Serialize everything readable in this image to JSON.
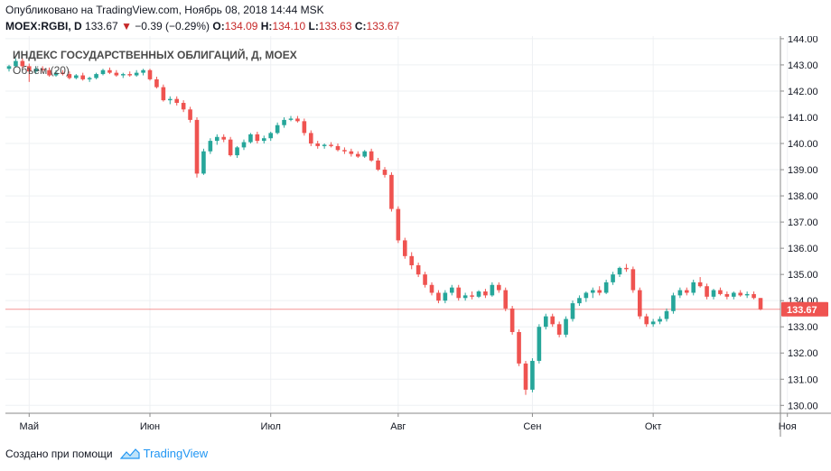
{
  "header": {
    "published": "Опубликовано на TradingView.com, Ноябрь 08, 2018 14:44 MSK",
    "symbol": "MOEX:RGBI, D",
    "last": "133.67",
    "change": "−0.39 (−0.29%)",
    "open_label": "O:",
    "open": "134.09",
    "high_label": "H:",
    "high": "134.10",
    "low_label": "L:",
    "low": "133.63",
    "close_label": "C:",
    "close": "133.67"
  },
  "footer": {
    "text": "Создано при помощи",
    "brand": "TradingView"
  },
  "chart_data": {
    "type": "candlestick",
    "title": "ИНДЕКС ГОСУДАРСТВЕННЫХ ОБЛИГАЦИЙ, Д, MOEX",
    "volume_label": "Объём (20)",
    "ylim": [
      129.7,
      144.1
    ],
    "y_ticks": [
      "130.00",
      "131.00",
      "132.00",
      "133.00",
      "134.00",
      "135.00",
      "136.00",
      "137.00",
      "138.00",
      "139.00",
      "140.00",
      "141.00",
      "142.00",
      "143.00",
      "144.00"
    ],
    "x_ticks": [
      {
        "label": "Май",
        "index": 3
      },
      {
        "label": "Июн",
        "index": 21
      },
      {
        "label": "Июл",
        "index": 39
      },
      {
        "label": "Авг",
        "index": 58
      },
      {
        "label": "Сен",
        "index": 78
      },
      {
        "label": "Окт",
        "index": 96
      },
      {
        "label": "Ноя",
        "index": 116
      }
    ],
    "last_price": 133.67,
    "last_price_label": "133.67",
    "colors": {
      "up": "#26a69a",
      "down": "#ef5350",
      "grid": "#eef0f3",
      "axis": "#8a8a8a",
      "last": "#ef5350"
    },
    "ohlc": [
      [
        142.85,
        143.0,
        142.75,
        142.95
      ],
      [
        142.95,
        143.25,
        142.9,
        143.15
      ],
      [
        143.15,
        143.25,
        142.85,
        142.95
      ],
      [
        142.95,
        143.05,
        142.35,
        142.75
      ],
      [
        142.75,
        142.95,
        142.65,
        142.85
      ],
      [
        142.85,
        142.95,
        142.7,
        142.8
      ],
      [
        142.8,
        142.9,
        142.55,
        142.6
      ],
      [
        142.6,
        142.8,
        142.55,
        142.7
      ],
      [
        142.7,
        142.8,
        142.6,
        142.65
      ],
      [
        142.65,
        142.75,
        142.45,
        142.5
      ],
      [
        142.5,
        142.65,
        142.45,
        142.6
      ],
      [
        142.6,
        142.7,
        142.4,
        142.45
      ],
      [
        142.45,
        142.55,
        142.35,
        142.5
      ],
      [
        142.5,
        142.7,
        142.45,
        142.65
      ],
      [
        142.65,
        142.85,
        142.6,
        142.8
      ],
      [
        142.8,
        142.9,
        142.65,
        142.7
      ],
      [
        142.7,
        142.8,
        142.55,
        142.6
      ],
      [
        142.6,
        142.7,
        142.5,
        142.65
      ],
      [
        142.65,
        142.75,
        142.55,
        142.6
      ],
      [
        142.6,
        142.8,
        142.55,
        142.7
      ],
      [
        142.7,
        142.85,
        142.6,
        142.8
      ],
      [
        142.8,
        142.85,
        142.4,
        142.45
      ],
      [
        142.45,
        142.55,
        142.1,
        142.15
      ],
      [
        142.15,
        142.25,
        141.6,
        141.65
      ],
      [
        141.65,
        141.8,
        141.5,
        141.7
      ],
      [
        141.7,
        141.8,
        141.45,
        141.55
      ],
      [
        141.55,
        141.65,
        141.2,
        141.3
      ],
      [
        141.3,
        141.4,
        140.8,
        140.9
      ],
      [
        140.9,
        141.0,
        138.7,
        138.85
      ],
      [
        138.85,
        139.8,
        138.8,
        139.7
      ],
      [
        139.7,
        140.2,
        139.6,
        140.1
      ],
      [
        140.1,
        140.35,
        139.95,
        140.25
      ],
      [
        140.25,
        140.35,
        140.05,
        140.15
      ],
      [
        140.15,
        140.25,
        139.5,
        139.55
      ],
      [
        139.55,
        139.9,
        139.45,
        139.85
      ],
      [
        139.85,
        140.15,
        139.75,
        140.05
      ],
      [
        140.05,
        140.4,
        140.0,
        140.35
      ],
      [
        140.35,
        140.45,
        140.0,
        140.1
      ],
      [
        140.1,
        140.3,
        140.0,
        140.2
      ],
      [
        140.2,
        140.45,
        140.1,
        140.4
      ],
      [
        140.4,
        140.8,
        140.35,
        140.7
      ],
      [
        140.7,
        141.0,
        140.6,
        140.9
      ],
      [
        140.9,
        141.05,
        140.85,
        140.95
      ],
      [
        140.95,
        141.05,
        140.8,
        140.85
      ],
      [
        140.85,
        140.95,
        140.3,
        140.4
      ],
      [
        140.4,
        140.5,
        139.9,
        140.0
      ],
      [
        140.0,
        140.1,
        139.8,
        139.9
      ],
      [
        139.9,
        140.0,
        139.8,
        139.95
      ],
      [
        139.95,
        140.05,
        139.85,
        139.9
      ],
      [
        139.9,
        140.0,
        139.7,
        139.75
      ],
      [
        139.75,
        139.85,
        139.6,
        139.7
      ],
      [
        139.7,
        139.8,
        139.5,
        139.6
      ],
      [
        139.6,
        139.7,
        139.45,
        139.5
      ],
      [
        139.5,
        139.75,
        139.45,
        139.7
      ],
      [
        139.7,
        139.8,
        139.3,
        139.35
      ],
      [
        139.35,
        139.45,
        138.95,
        139.0
      ],
      [
        139.0,
        139.1,
        138.7,
        138.8
      ],
      [
        138.8,
        138.9,
        137.4,
        137.5
      ],
      [
        137.5,
        137.6,
        136.2,
        136.3
      ],
      [
        136.3,
        136.4,
        135.6,
        135.7
      ],
      [
        135.7,
        135.85,
        135.2,
        135.35
      ],
      [
        135.35,
        135.45,
        134.9,
        135.0
      ],
      [
        135.0,
        135.1,
        134.5,
        134.6
      ],
      [
        134.6,
        134.7,
        134.2,
        134.3
      ],
      [
        134.3,
        134.4,
        133.9,
        134.0
      ],
      [
        134.0,
        134.4,
        133.9,
        134.3
      ],
      [
        134.3,
        134.6,
        134.2,
        134.5
      ],
      [
        134.5,
        134.6,
        134.0,
        134.1
      ],
      [
        134.1,
        134.3,
        134.0,
        134.2
      ],
      [
        134.2,
        134.35,
        134.05,
        134.15
      ],
      [
        134.15,
        134.4,
        134.1,
        134.35
      ],
      [
        134.35,
        134.45,
        134.1,
        134.2
      ],
      [
        134.2,
        134.7,
        134.15,
        134.6
      ],
      [
        134.6,
        134.7,
        134.3,
        134.4
      ],
      [
        134.4,
        134.5,
        133.6,
        133.7
      ],
      [
        133.7,
        133.8,
        132.7,
        132.8
      ],
      [
        132.8,
        132.9,
        131.5,
        131.6
      ],
      [
        131.6,
        131.7,
        130.4,
        130.6
      ],
      [
        130.6,
        131.8,
        130.5,
        131.7
      ],
      [
        131.7,
        133.1,
        131.6,
        133.0
      ],
      [
        133.0,
        133.5,
        132.9,
        133.4
      ],
      [
        133.4,
        133.5,
        133.0,
        133.1
      ],
      [
        133.1,
        133.2,
        132.6,
        132.7
      ],
      [
        132.7,
        133.4,
        132.6,
        133.3
      ],
      [
        133.3,
        134.0,
        133.2,
        133.9
      ],
      [
        133.9,
        134.2,
        133.8,
        134.1
      ],
      [
        134.1,
        134.35,
        133.95,
        134.3
      ],
      [
        134.3,
        134.5,
        134.1,
        134.4
      ],
      [
        134.4,
        134.55,
        134.2,
        134.3
      ],
      [
        134.3,
        134.8,
        134.25,
        134.7
      ],
      [
        134.7,
        135.1,
        134.6,
        135.0
      ],
      [
        135.0,
        135.3,
        134.9,
        135.25
      ],
      [
        135.25,
        135.4,
        135.1,
        135.2
      ],
      [
        135.2,
        135.3,
        134.3,
        134.4
      ],
      [
        134.4,
        134.5,
        133.3,
        133.4
      ],
      [
        133.4,
        133.5,
        133.0,
        133.1
      ],
      [
        133.1,
        133.3,
        133.0,
        133.2
      ],
      [
        133.2,
        133.4,
        133.1,
        133.3
      ],
      [
        133.3,
        133.7,
        133.2,
        133.6
      ],
      [
        133.6,
        134.3,
        133.5,
        134.2
      ],
      [
        134.2,
        134.5,
        134.1,
        134.4
      ],
      [
        134.4,
        134.5,
        134.2,
        134.3
      ],
      [
        134.3,
        134.8,
        134.2,
        134.7
      ],
      [
        134.7,
        134.9,
        134.5,
        134.55
      ],
      [
        134.55,
        134.65,
        134.05,
        134.15
      ],
      [
        134.15,
        134.45,
        134.05,
        134.4
      ],
      [
        134.4,
        134.5,
        134.2,
        134.25
      ],
      [
        134.25,
        134.35,
        134.05,
        134.15
      ],
      [
        134.15,
        134.35,
        134.05,
        134.3
      ],
      [
        134.3,
        134.4,
        134.15,
        134.2
      ],
      [
        134.2,
        134.35,
        134.1,
        134.25
      ],
      [
        134.25,
        134.35,
        134.05,
        134.1
      ],
      [
        134.1,
        134.1,
        133.63,
        133.67
      ]
    ]
  }
}
